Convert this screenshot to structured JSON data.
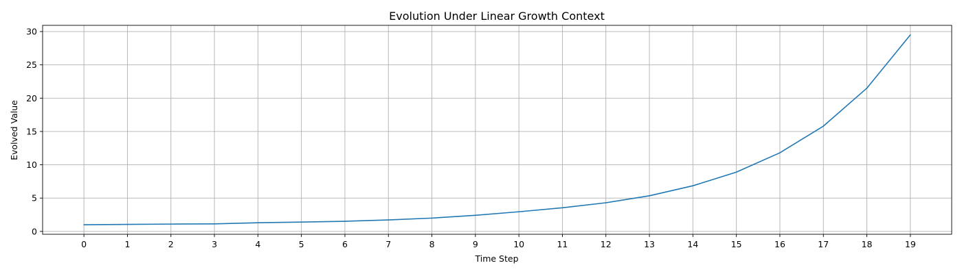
{
  "chart_data": {
    "type": "line",
    "title": "Evolution Under Linear Growth Context",
    "xlabel": "Time Step",
    "ylabel": "Evolved Value",
    "x": [
      0,
      1,
      2,
      3,
      4,
      5,
      6,
      7,
      8,
      9,
      10,
      11,
      12,
      13,
      14,
      15,
      16,
      17,
      18,
      19
    ],
    "series": [
      {
        "values": [
          1.0,
          1.05,
          1.1,
          1.13,
          1.3,
          1.4,
          1.52,
          1.72,
          2.0,
          2.42,
          2.95,
          3.55,
          4.3,
          5.35,
          6.85,
          8.9,
          11.8,
          15.8,
          21.5,
          29.5
        ]
      }
    ],
    "xticks": [
      0,
      1,
      2,
      3,
      4,
      5,
      6,
      7,
      8,
      9,
      10,
      11,
      12,
      13,
      14,
      15,
      16,
      17,
      18,
      19
    ],
    "yticks": [
      0,
      5,
      10,
      15,
      20,
      25,
      30
    ],
    "xlim": [
      -0.95,
      19.95
    ],
    "ylim": [
      -0.43,
      30.93
    ],
    "grid": true,
    "colors": {
      "line": "#1f77b4",
      "grid": "#b0b0b0"
    }
  }
}
